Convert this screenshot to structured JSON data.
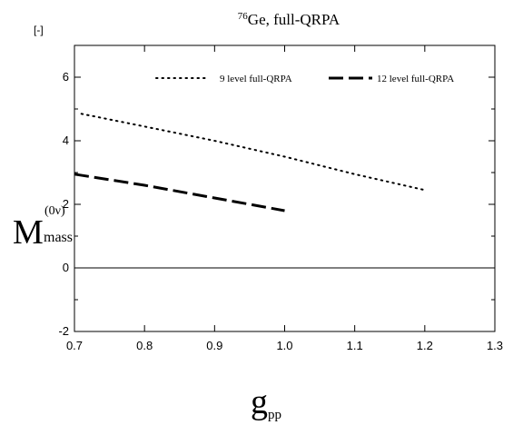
{
  "chart_data": {
    "type": "line",
    "title": {
      "superscript": "76",
      "text": "Ge, full-QRPA"
    },
    "unit_label": "[-]",
    "ylabel": {
      "main": "M",
      "superscript": "(0ν)",
      "subscript": "mass"
    },
    "xlabel": {
      "main": "g",
      "subscript": "pp"
    },
    "xlim": [
      0.7,
      1.3
    ],
    "ylim": [
      -2,
      7
    ],
    "xticks": [
      {
        "value": 0.7,
        "label": "0.7"
      },
      {
        "value": 0.8,
        "label": "0.8"
      },
      {
        "value": 0.9,
        "label": "0.9"
      },
      {
        "value": 1.0,
        "label": "1.0"
      },
      {
        "value": 1.1,
        "label": "1.1"
      },
      {
        "value": 1.2,
        "label": "1.2"
      },
      {
        "value": 1.3,
        "label": "1.3"
      }
    ],
    "yticks": [
      {
        "value": -2,
        "label": "-2"
      },
      {
        "value": 0,
        "label": "0"
      },
      {
        "value": 2,
        "label": "2"
      },
      {
        "value": 4,
        "label": "4"
      },
      {
        "value": 6,
        "label": "6"
      }
    ],
    "ytick_minor": [
      -1,
      1,
      3,
      5
    ],
    "reference_line_y": 0,
    "grid": false,
    "legend_position": "top",
    "series": [
      {
        "name": "9 level full-QRPA",
        "style": "dotted",
        "color": "#000000",
        "x": [
          0.71,
          0.8,
          0.9,
          1.0,
          1.1,
          1.2
        ],
        "y": [
          4.85,
          4.45,
          4.0,
          3.5,
          2.95,
          2.45
        ]
      },
      {
        "name": "12 level full-QRPA",
        "style": "dashed",
        "color": "#000000",
        "x": [
          0.7,
          0.8,
          0.9,
          1.0
        ],
        "y": [
          2.95,
          2.6,
          2.2,
          1.8
        ]
      }
    ]
  }
}
